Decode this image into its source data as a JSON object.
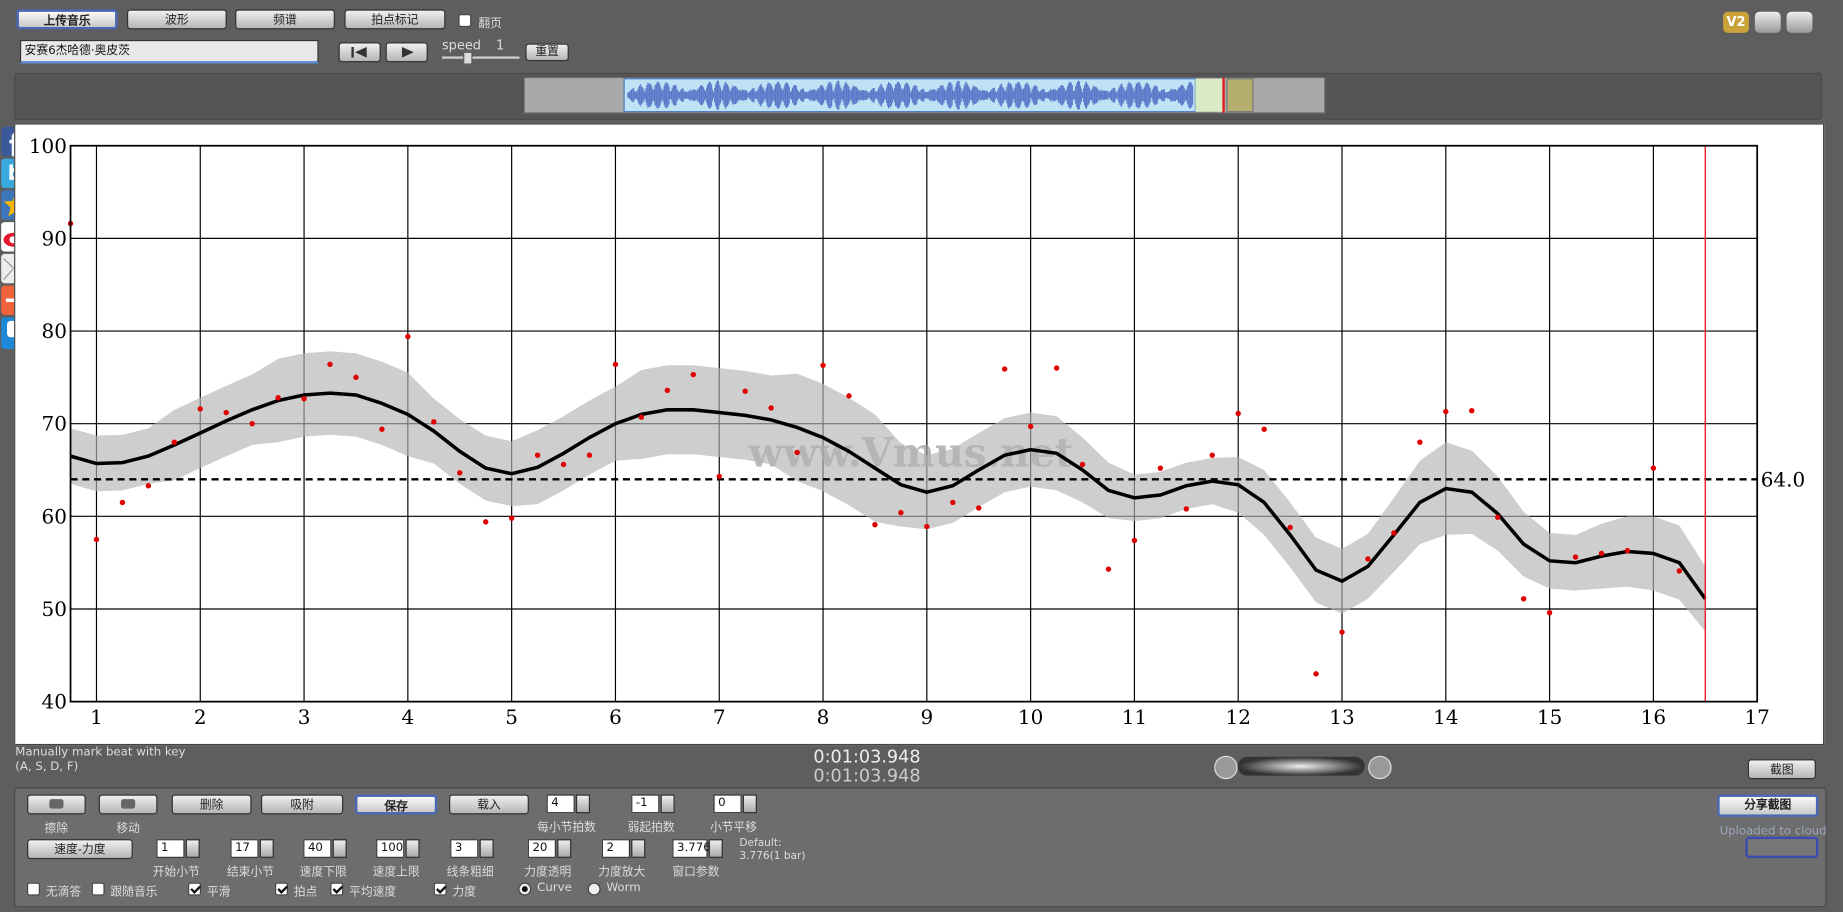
{
  "toolbar": {
    "upload": "上传音乐",
    "waveform": "波形",
    "spectrum": "频谱",
    "beat_mark": "拍点标记",
    "page_turn": {
      "label": "翻页",
      "checked": false
    }
  },
  "track_name": "安赛6杰哈德·奥皮茨",
  "speed": {
    "label": "speed",
    "value": "1"
  },
  "reset": "重置",
  "version": "V2",
  "hint": [
    "Manually mark beat with key",
    "(A, S, D, F)"
  ],
  "time": [
    "0:01:03.948",
    "0:01:03.948"
  ],
  "screenshot": "截图",
  "share": "分享截图",
  "upload_status": "Uploaded to cloud",
  "tools": {
    "erase": "擦除",
    "move": "移动",
    "delete": "删除",
    "snap": "吸附",
    "save": "保存",
    "load": "载入",
    "tempo_dynamics": "速度-力度"
  },
  "spinners": [
    {
      "value": "4",
      "label": "每小节拍数"
    },
    {
      "value": "-1",
      "label": "弱起拍数"
    },
    {
      "value": "0",
      "label": "小节平移"
    },
    {
      "value": "1",
      "label": "开始小节"
    },
    {
      "value": "17",
      "label": "结束小节"
    },
    {
      "value": "40",
      "label": "速度下限"
    },
    {
      "value": "100",
      "label": "速度上限"
    },
    {
      "value": "3",
      "label": "线条粗细"
    },
    {
      "value": "20",
      "label": "力度透明"
    },
    {
      "value": "2",
      "label": "力度放大"
    },
    {
      "value": "3.776",
      "label": "窗口参数"
    }
  ],
  "default_note": [
    "Default:",
    "3.776(1 bar)"
  ],
  "options": [
    {
      "label": "无滴答",
      "checked": false
    },
    {
      "label": "跟随音乐",
      "checked": false
    },
    {
      "label": "平滑",
      "checked": true
    },
    {
      "label": "拍点",
      "checked": true
    },
    {
      "label": "平均速度",
      "checked": true
    },
    {
      "label": "力度",
      "checked": true
    }
  ],
  "modes": [
    {
      "label": "Curve",
      "selected": true
    },
    {
      "label": "Worm",
      "selected": false
    }
  ],
  "chart_data": {
    "type": "line",
    "watermark": "www.Vmus.net",
    "xlim": [
      0.75,
      17
    ],
    "xticks": [
      1,
      2,
      3,
      4,
      5,
      6,
      7,
      8,
      9,
      10,
      11,
      12,
      13,
      14,
      15,
      16,
      17
    ],
    "ylim": [
      40,
      100
    ],
    "yticks": [
      40,
      50,
      60,
      70,
      80,
      90,
      100
    ],
    "grid": true,
    "x": [
      0.75,
      1,
      1.25,
      1.5,
      1.75,
      2,
      2.25,
      2.5,
      2.75,
      3,
      3.25,
      3.5,
      3.75,
      4,
      4.25,
      4.5,
      4.75,
      5,
      5.25,
      5.5,
      5.75,
      6,
      6.25,
      6.5,
      6.75,
      7,
      7.25,
      7.5,
      7.75,
      8,
      8.25,
      8.5,
      8.75,
      9,
      9.25,
      9.5,
      9.75,
      10,
      10.25,
      10.5,
      10.75,
      11,
      11.25,
      11.5,
      11.75,
      12,
      12.25,
      12.5,
      12.75,
      13,
      13.25,
      13.5,
      13.75,
      14,
      14.25,
      14.5,
      14.75,
      15,
      15.25,
      15.5,
      15.75,
      16,
      16.25,
      16.5
    ],
    "curve": {
      "color": "#000000",
      "values": [
        66.5,
        65.7,
        65.8,
        66.5,
        67.7,
        69,
        70.3,
        71.5,
        72.5,
        73.1,
        73.3,
        73.1,
        72.2,
        71,
        69.2,
        67,
        65.2,
        64.6,
        65.3,
        66.8,
        68.5,
        70,
        71,
        71.5,
        71.5,
        71.2,
        70.9,
        70.4,
        69.6,
        68.5,
        67,
        65.2,
        63.4,
        62.6,
        63.3,
        65,
        66.6,
        67.2,
        66.8,
        65,
        62.8,
        62,
        62.3,
        63.3,
        63.8,
        63.4,
        61.5,
        58,
        54.2,
        53,
        54.6,
        58,
        61.5,
        63,
        62.6,
        60.3,
        57,
        55.2,
        55,
        55.7,
        56.2,
        56,
        55,
        51.1
      ]
    },
    "band": {
      "color": "#b4b4b4",
      "upper": [
        69.5,
        68.7,
        68.8,
        69.5,
        71.5,
        72.8,
        74.1,
        75.3,
        77,
        77.6,
        77.8,
        77.6,
        76.7,
        75.5,
        72.7,
        70.5,
        68.7,
        68.1,
        69.3,
        70.8,
        72.5,
        74,
        75.8,
        76.3,
        76.3,
        76,
        75.7,
        75.2,
        75.4,
        74.3,
        72.8,
        71,
        67.9,
        66.6,
        67.3,
        69,
        70.6,
        71.2,
        70.8,
        68.5,
        65.8,
        64.5,
        64.8,
        65.8,
        66.3,
        66.4,
        65,
        61.5,
        57.7,
        56.5,
        58.1,
        62,
        66,
        68,
        67.1,
        64.3,
        60.5,
        58.2,
        58,
        59.2,
        60,
        60,
        59,
        54.6
      ],
      "lower": [
        63.5,
        62.7,
        62.8,
        63.5,
        63.9,
        65.2,
        66.5,
        67.7,
        68,
        68.6,
        68.8,
        68.6,
        67.7,
        66.5,
        65.7,
        63.5,
        61.7,
        61.1,
        61.3,
        62.8,
        64.5,
        66,
        66.2,
        66.7,
        66.7,
        66.4,
        66.1,
        65.6,
        63.8,
        62.7,
        61.2,
        59.4,
        58.9,
        58.6,
        59.3,
        61,
        62.6,
        63.2,
        62.8,
        61.5,
        59.8,
        59.5,
        59.8,
        60.8,
        61.3,
        60.4,
        58,
        54.5,
        50.7,
        49.5,
        51.1,
        54,
        57,
        58,
        58.1,
        56.3,
        53.5,
        52.2,
        52,
        52.2,
        52.4,
        52,
        51,
        47.6
      ]
    },
    "points": {
      "color": "#e00000",
      "x": [
        0.75,
        1,
        1.25,
        1.5,
        1.75,
        2,
        2.25,
        2.5,
        2.75,
        3,
        3.25,
        3.5,
        3.75,
        4,
        4.25,
        4.5,
        4.75,
        5,
        5.25,
        5.5,
        5.75,
        6,
        6.25,
        6.5,
        6.75,
        7,
        7.25,
        7.5,
        7.75,
        8,
        8.25,
        8.5,
        8.75,
        9,
        9.25,
        9.5,
        9.75,
        10,
        10.25,
        10.5,
        10.75,
        11,
        11.25,
        11.5,
        11.75,
        12,
        12.25,
        12.5,
        12.75,
        13,
        13.25,
        13.5,
        13.75,
        14,
        14.25,
        14.5,
        14.75,
        15,
        15.25,
        15.5,
        15.75,
        16,
        16.25
      ],
      "values": [
        91.6,
        57.5,
        61.5,
        63.3,
        68,
        71.6,
        71.2,
        70,
        72.8,
        72.7,
        76.4,
        75,
        69.4,
        79.4,
        70.2,
        64.7,
        59.4,
        59.8,
        66.6,
        65.6,
        66.6,
        76.4,
        70.7,
        73.6,
        75.3,
        64.3,
        73.5,
        71.7,
        66.9,
        76.3,
        73,
        59.1,
        60.4,
        58.9,
        61.5,
        60.9,
        75.9,
        69.7,
        76,
        65.6,
        54.3,
        57.4,
        65.2,
        60.8,
        66.6,
        71.1,
        69.4,
        58.8,
        43,
        47.5,
        55.4,
        58.2,
        68,
        71.3,
        71.4,
        59.9,
        51.1,
        49.6,
        55.6,
        56,
        56.3,
        65.2,
        54.1
      ]
    },
    "reference": {
      "value": 64,
      "label": "64.0"
    },
    "cursor_x": 16.5,
    "cursor_color": "#e8222a"
  }
}
